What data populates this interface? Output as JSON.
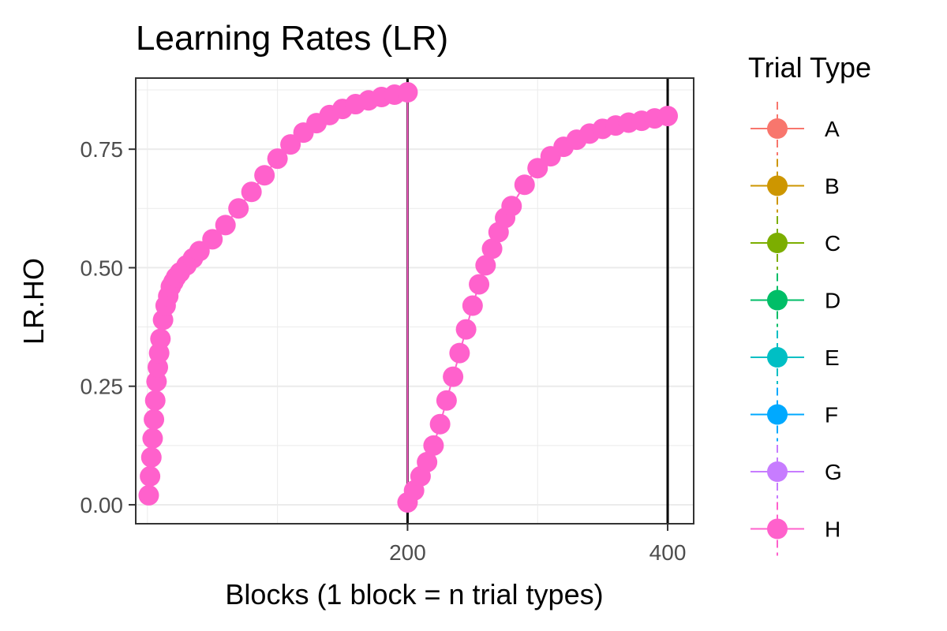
{
  "chart_data": {
    "type": "scatter",
    "title": "Learning Rates (LR)",
    "xlabel": "Blocks (1 block = n trial types)",
    "ylabel": "LR.HO",
    "xlim": [
      -9,
      420
    ],
    "ylim": [
      -0.04,
      0.9
    ],
    "xticks": [
      200,
      400
    ],
    "xtick_labels": [
      "200",
      "400"
    ],
    "yticks": [
      0,
      0.25,
      0.5,
      0.75
    ],
    "ytick_labels": [
      "0.00",
      "0.25",
      "0.50",
      "0.75"
    ],
    "grid": true,
    "vlines": [
      200,
      400
    ],
    "legend": {
      "title": "Trial Type",
      "position": "right",
      "entries": [
        {
          "label": "A",
          "color": "#F8766D"
        },
        {
          "label": "B",
          "color": "#CD9600"
        },
        {
          "label": "C",
          "color": "#7CAE00"
        },
        {
          "label": "D",
          "color": "#00BE67"
        },
        {
          "label": "E",
          "color": "#00BFC4"
        },
        {
          "label": "F",
          "color": "#00A9FF"
        },
        {
          "label": "G",
          "color": "#C77CFF"
        },
        {
          "label": "H",
          "color": "#FF61CC"
        }
      ]
    },
    "series": [
      {
        "name": "H",
        "color": "#FF61CC",
        "x": [
          1,
          2,
          3,
          4,
          5,
          6,
          7,
          8,
          9,
          10,
          12,
          14,
          16,
          18,
          20,
          22,
          25,
          30,
          35,
          40,
          50,
          60,
          70,
          80,
          90,
          100,
          110,
          120,
          130,
          140,
          150,
          160,
          170,
          180,
          190,
          200
        ],
        "y": [
          0.02,
          0.06,
          0.1,
          0.14,
          0.18,
          0.22,
          0.26,
          0.29,
          0.32,
          0.35,
          0.39,
          0.42,
          0.44,
          0.46,
          0.47,
          0.48,
          0.49,
          0.505,
          0.52,
          0.535,
          0.56,
          0.59,
          0.625,
          0.66,
          0.695,
          0.73,
          0.76,
          0.785,
          0.805,
          0.822,
          0.835,
          0.845,
          0.853,
          0.86,
          0.865,
          0.87
        ]
      },
      {
        "name": "H",
        "color": "#FF61CC",
        "x": [
          200,
          205,
          210,
          215,
          220,
          225,
          230,
          235,
          240,
          245,
          250,
          255,
          260,
          265,
          270,
          275,
          280,
          290,
          300,
          310,
          320,
          330,
          340,
          350,
          360,
          370,
          380,
          390,
          400
        ],
        "y": [
          0.005,
          0.03,
          0.06,
          0.09,
          0.125,
          0.17,
          0.22,
          0.27,
          0.32,
          0.37,
          0.42,
          0.465,
          0.505,
          0.54,
          0.575,
          0.605,
          0.63,
          0.675,
          0.71,
          0.735,
          0.755,
          0.77,
          0.783,
          0.793,
          0.8,
          0.806,
          0.81,
          0.815,
          0.82
        ]
      }
    ]
  }
}
